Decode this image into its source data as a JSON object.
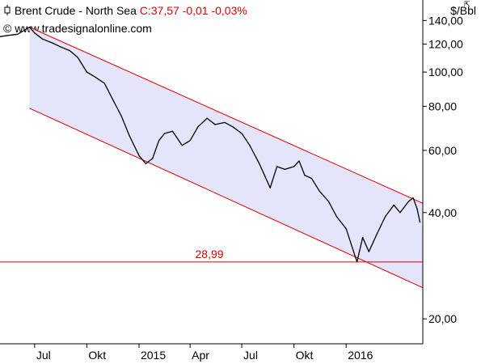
{
  "header": {
    "title": "Brent Crude - North Sea",
    "quote": "C:37,57 -0,01 -0,03%",
    "source": "© www.tradesignalonline.com"
  },
  "colors": {
    "channel_fill": "#e4e4fa",
    "channel_line": "#e00000",
    "price_line": "#000000",
    "level_line": "#e00000",
    "axis": "#000000",
    "quote": "#e00000"
  },
  "chart_data": {
    "type": "line",
    "ylabel": "$/Bbl",
    "yscale": "log",
    "ylim": [
      17,
      160
    ],
    "yticks": [
      {
        "value": 140,
        "label": "140,00"
      },
      {
        "value": 120,
        "label": "120,00"
      },
      {
        "value": 100,
        "label": "100,00"
      },
      {
        "value": 80,
        "label": "80,00"
      },
      {
        "value": 60,
        "label": "60,00"
      },
      {
        "value": 40,
        "label": "40,00"
      },
      {
        "value": 20,
        "label": "20,00"
      }
    ],
    "xlim": [
      "2014-05-01",
      "2016-05-15"
    ],
    "xticks": [
      {
        "date": "2014-07-01",
        "label": "Jul"
      },
      {
        "date": "2014-10-01",
        "label": "Okt"
      },
      {
        "date": "2015-01-01",
        "label": "2015"
      },
      {
        "date": "2015-04-01",
        "label": "Apr"
      },
      {
        "date": "2015-07-01",
        "label": "Jul"
      },
      {
        "date": "2015-10-01",
        "label": "Okt"
      },
      {
        "date": "2016-01-01",
        "label": "2016"
      }
    ],
    "series": [
      {
        "points": [
          [
            "2014-05-01",
            126
          ],
          [
            "2014-05-15",
            127
          ],
          [
            "2014-06-01",
            128
          ],
          [
            "2014-06-15",
            132
          ],
          [
            "2014-06-22",
            134
          ],
          [
            "2014-07-01",
            129
          ],
          [
            "2014-07-15",
            124
          ],
          [
            "2014-08-01",
            121
          ],
          [
            "2014-08-15",
            118
          ],
          [
            "2014-09-01",
            115
          ],
          [
            "2014-09-15",
            110
          ],
          [
            "2014-10-01",
            100
          ],
          [
            "2014-10-15",
            97
          ],
          [
            "2014-11-01",
            93
          ],
          [
            "2014-11-15",
            84
          ],
          [
            "2014-12-01",
            75
          ],
          [
            "2014-12-15",
            66
          ],
          [
            "2015-01-01",
            58
          ],
          [
            "2015-01-13",
            55
          ],
          [
            "2015-01-25",
            57
          ],
          [
            "2015-02-05",
            64
          ],
          [
            "2015-02-15",
            67
          ],
          [
            "2015-03-01",
            68
          ],
          [
            "2015-03-18",
            62
          ],
          [
            "2015-04-01",
            64
          ],
          [
            "2015-04-15",
            70
          ],
          [
            "2015-05-01",
            74
          ],
          [
            "2015-05-15",
            71
          ],
          [
            "2015-06-01",
            72
          ],
          [
            "2015-06-15",
            70
          ],
          [
            "2015-07-01",
            67
          ],
          [
            "2015-07-15",
            62
          ],
          [
            "2015-08-01",
            55
          ],
          [
            "2015-08-20",
            47
          ],
          [
            "2015-09-01",
            54
          ],
          [
            "2015-09-15",
            53
          ],
          [
            "2015-10-01",
            54
          ],
          [
            "2015-10-10",
            56
          ],
          [
            "2015-10-20",
            51
          ],
          [
            "2015-11-01",
            50
          ],
          [
            "2015-11-15",
            46
          ],
          [
            "2015-12-01",
            43
          ],
          [
            "2015-12-15",
            39
          ],
          [
            "2016-01-01",
            36
          ],
          [
            "2016-01-20",
            29
          ],
          [
            "2016-01-30",
            34
          ],
          [
            "2016-02-10",
            31
          ],
          [
            "2016-02-25",
            35
          ],
          [
            "2016-03-10",
            39
          ],
          [
            "2016-03-25",
            42
          ],
          [
            "2016-04-05",
            40
          ],
          [
            "2016-04-20",
            43
          ],
          [
            "2016-04-28",
            44
          ],
          [
            "2016-05-05",
            41
          ],
          [
            "2016-05-10",
            37.57
          ]
        ]
      }
    ],
    "channel": {
      "upper": [
        [
          "2014-06-22",
          134
        ],
        [
          "2016-05-15",
          42.5
        ]
      ],
      "lower": [
        [
          "2014-06-22",
          79
        ],
        [
          "2016-05-15",
          24.5
        ]
      ]
    },
    "levels": [
      {
        "value": 28.99,
        "label": "28,99"
      }
    ],
    "grid": false,
    "legend": "none"
  }
}
